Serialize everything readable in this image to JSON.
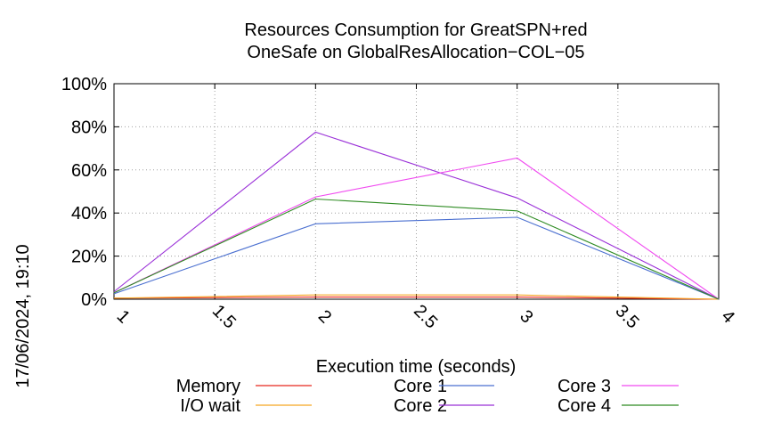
{
  "timestamp": "17/06/2024, 19:10",
  "chart_data": {
    "type": "line",
    "title": [
      "Resources Consumption for GreatSPN+red",
      "OneSafe on GlobalResAllocation−COL−05"
    ],
    "xlabel": "Execution time (seconds)",
    "ylabel": "",
    "xlim": [
      1,
      4
    ],
    "ylim": [
      0,
      100
    ],
    "x_ticks": [
      1,
      1.5,
      2,
      2.5,
      3,
      3.5,
      4
    ],
    "y_ticks": [
      0,
      20,
      40,
      60,
      80,
      100
    ],
    "y_tick_labels": [
      "0%",
      "20%",
      "40%",
      "60%",
      "80%",
      "100%"
    ],
    "grid": true,
    "legend_position": "bottom",
    "series": [
      {
        "name": "Memory",
        "color": "#e8271e",
        "x": [
          1,
          2,
          3,
          4
        ],
        "values": [
          0.5,
          1,
          1,
          0
        ]
      },
      {
        "name": "I/O wait",
        "color": "#f5a623",
        "x": [
          1,
          2,
          3,
          4
        ],
        "values": [
          0.5,
          2,
          2,
          0
        ]
      },
      {
        "name": "Core 1",
        "color": "#4a6fd0",
        "x": [
          1,
          2,
          3,
          4
        ],
        "values": [
          2.5,
          35,
          38,
          0
        ]
      },
      {
        "name": "Core 2",
        "color": "#9a30d8",
        "x": [
          1,
          2,
          3,
          4
        ],
        "values": [
          3.5,
          77.5,
          47,
          0
        ]
      },
      {
        "name": "Core 3",
        "color": "#f04af0",
        "x": [
          1,
          2,
          3,
          4
        ],
        "values": [
          3,
          47.5,
          65.5,
          0
        ]
      },
      {
        "name": "Core 4",
        "color": "#2e8b22",
        "x": [
          1,
          2,
          3,
          4
        ],
        "values": [
          3,
          46.5,
          41,
          0
        ]
      }
    ]
  }
}
